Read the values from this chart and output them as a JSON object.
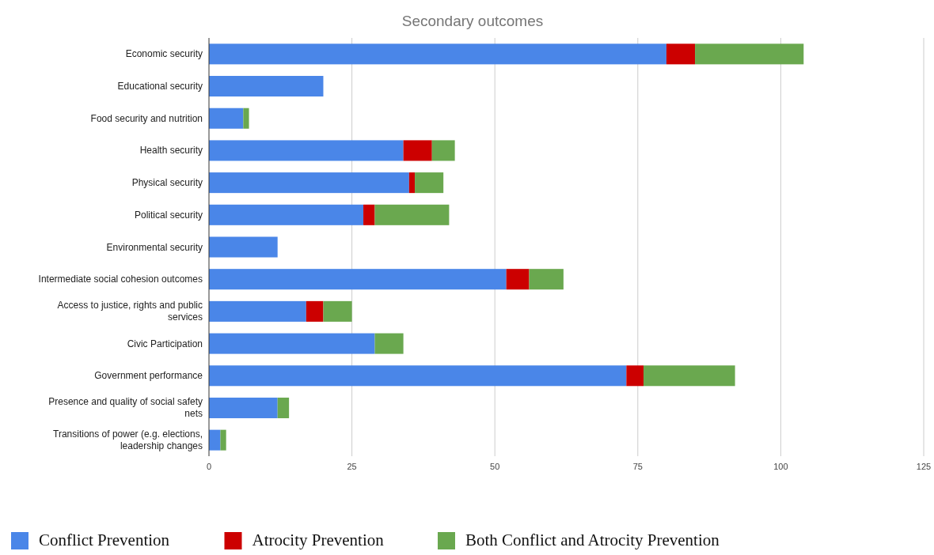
{
  "chart_data": {
    "type": "bar",
    "title": "Secondary outcomes",
    "orientation": "horizontal",
    "stacked": true,
    "categories": [
      "Economic security",
      "Educational security",
      "Food security and nutrition",
      "Health security",
      "Physical security",
      "Political security",
      "Environmental security",
      "Intermediate social cohesion outcomes",
      "Access to justice, rights and public services",
      "Civic Participation",
      "Government performance",
      "Presence and quality of social safety nets",
      "Transitions of power (e.g. elections, leadership changes"
    ],
    "series": [
      {
        "name": "Conflict Prevention",
        "color": "#4a86e8",
        "values": [
          80,
          20,
          6,
          34,
          35,
          27,
          12,
          52,
          17,
          29,
          73,
          12,
          2
        ]
      },
      {
        "name": "Atrocity Prevention",
        "color": "#cc0000",
        "values": [
          5,
          0,
          0,
          5,
          1,
          2,
          0,
          4,
          3,
          0,
          3,
          0,
          0
        ]
      },
      {
        "name": "Both Conflict and Atrocity Prevention",
        "color": "#6aa84f",
        "values": [
          19,
          0,
          1,
          4,
          5,
          13,
          0,
          6,
          5,
          5,
          16,
          2,
          1
        ]
      }
    ],
    "xlim": [
      0,
      125
    ],
    "xticks": [
      0,
      25,
      50,
      75,
      100,
      125
    ],
    "grid": "x",
    "legend": "bottom"
  }
}
